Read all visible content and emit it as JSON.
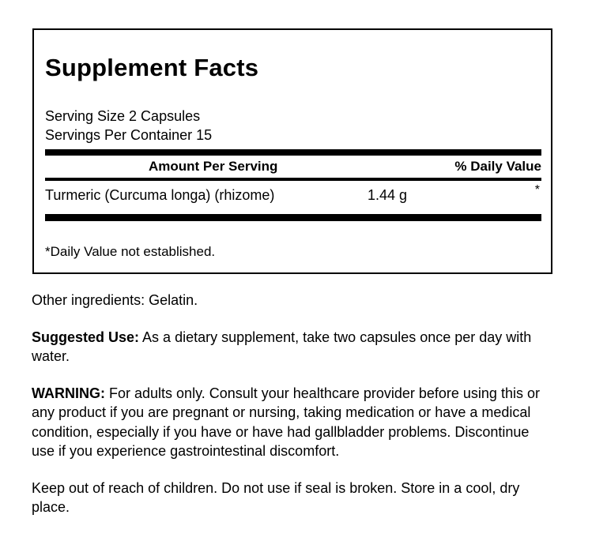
{
  "panel": {
    "title": "Supplement Facts",
    "serving_size": "Serving Size 2 Capsules",
    "servings_per_container": "Servings Per Container 15",
    "table": {
      "amount_header": "Amount Per Serving",
      "dv_header": "% Daily Value",
      "rows": [
        {
          "name": "Turmeric (Curcuma longa) (rhizome)",
          "amount": "1.44 g",
          "dv": "*"
        }
      ],
      "footnote": "*Daily Value not established."
    }
  },
  "body_copy": {
    "other_ingredients": "Other ingredients: Gelatin.",
    "suggested_use_label": "Suggested Use:",
    "suggested_use_text": "As a dietary supplement, take two capsules once per day with water.",
    "warning_label": "WARNING:",
    "warning_text": "For adults only. Consult your healthcare provider before using this or any product if you are pregnant or nursing, taking medication or have a medical condition, especially if you have or have had gallbladder problems. Discontinue use if you experience gastrointestinal discomfort.",
    "storage_text": "Keep out of reach of children. Do not use if seal is broken. Store in a cool, dry place."
  },
  "colors": {
    "text": "#000000",
    "background": "#ffffff",
    "rule": "#000000"
  }
}
